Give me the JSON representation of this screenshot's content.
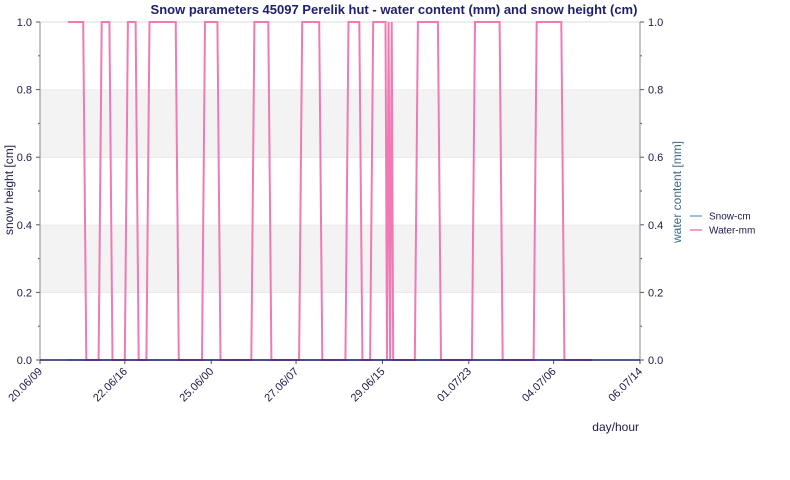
{
  "chart_data": {
    "type": "line",
    "title": "Snow parameters 45097 Perelik hut  - water content (mm) and snow height (cm)",
    "xlabel": "day/hour",
    "ylabel": "snow height [cm]",
    "y2label": "water content [mm]",
    "ylim": [
      0,
      1
    ],
    "y2lim": [
      0,
      1
    ],
    "yticks": [
      "0.0",
      "0.2",
      "0.4",
      "0.6",
      "0.8",
      "1.0"
    ],
    "y2ticks": [
      "0.0",
      "0.2",
      "0.4",
      "0.6",
      "0.8",
      "1.0"
    ],
    "xrange": [
      "20.06/09",
      "06.07/14"
    ],
    "xticks": [
      "20.06/09",
      "22.06/16",
      "25.06/00",
      "27.06/07",
      "29.06/15",
      "01.07/23",
      "04.07/06",
      "06.07/14"
    ],
    "grid_bands": true,
    "legend_position": "right",
    "series": [
      {
        "name": "Snow-cm",
        "color": "#7aaed6",
        "x": [
          "21.06/03",
          "05.07/07"
        ],
        "values": [
          0,
          0
        ]
      },
      {
        "name": "Water-mm",
        "color": "#f07ab4",
        "x": [
          "21.06/03",
          "21.06/13",
          "21.06/15",
          "21.06/23",
          "22.06/01",
          "22.06/06",
          "22.06/08",
          "22.06/16",
          "22.06/18",
          "22.06/23",
          "23.06/01",
          "23.06/06",
          "23.06/08",
          "24.06/01",
          "24.06/03",
          "24.06/18",
          "24.06/20",
          "25.06/04",
          "25.06/06",
          "26.06/02",
          "26.06/04",
          "26.06/13",
          "26.06/15",
          "27.06/09",
          "27.06/11",
          "27.06/22",
          "28.06/00",
          "28.06/15",
          "28.06/17",
          "29.06/00",
          "29.06/02",
          "29.06/07",
          "29.06/09",
          "29.06/17",
          "29.06/18",
          "29.06/19",
          "29.06/20",
          "29.06/21",
          "29.06/22",
          "30.06/12",
          "30.06/14",
          "01.07/03",
          "01.07/05",
          "02.07/01",
          "02.07/03",
          "02.07/19",
          "02.07/21",
          "03.07/17",
          "03.07/19",
          "04.07/11",
          "04.07/13",
          "05.07/07"
        ],
        "values": [
          1,
          1,
          0,
          0,
          1,
          1,
          0,
          0,
          1,
          1,
          0,
          0,
          1,
          1,
          0,
          0,
          1,
          1,
          0,
          0,
          1,
          1,
          0,
          0,
          1,
          1,
          0,
          0,
          1,
          1,
          0,
          0,
          1,
          1,
          0,
          1,
          0,
          1,
          0,
          0,
          1,
          1,
          0,
          0,
          1,
          1,
          0,
          0,
          1,
          1,
          0,
          0
        ]
      }
    ]
  }
}
